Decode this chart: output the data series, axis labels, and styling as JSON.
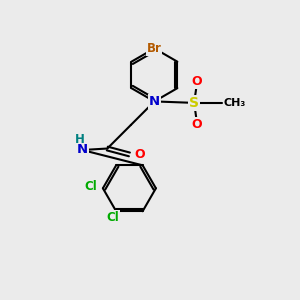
{
  "bg_color": "#ebebeb",
  "bond_color": "#000000",
  "bond_width": 1.5,
  "atom_colors": {
    "Br": "#b35a00",
    "N": "#0000cc",
    "S": "#cccc00",
    "O": "#ff0000",
    "Cl": "#00aa00",
    "H": "#008080",
    "C": "#000000"
  },
  "fig_width": 3.0,
  "fig_height": 3.0
}
